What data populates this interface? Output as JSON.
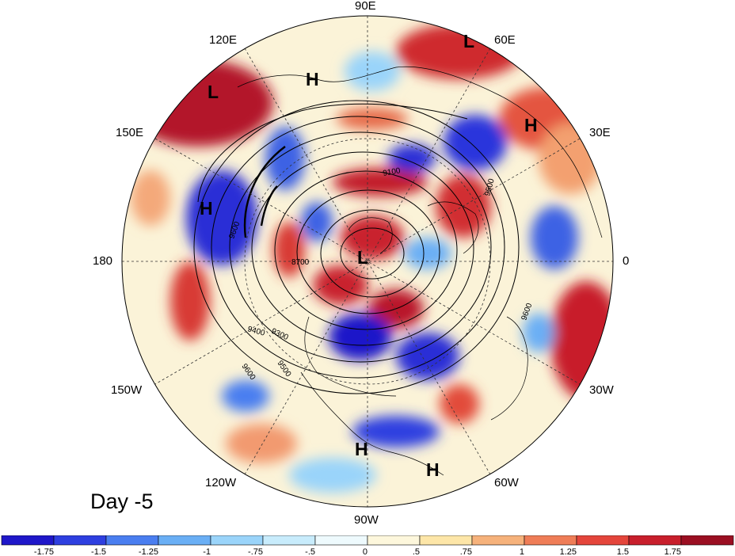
{
  "panel_label": "Day -5",
  "longitude_labels": {
    "lon_90e": "90E",
    "lon_120e": "120E",
    "lon_60e": "60E",
    "lon_150e": "150E",
    "lon_30e": "30E",
    "lon_180": "180",
    "lon_0": "0",
    "lon_150w": "150W",
    "lon_30w": "30W",
    "lon_120w": "120W",
    "lon_60w": "60W",
    "lon_90w": "90W"
  },
  "pressure_centers": [
    {
      "label": "L",
      "name": "low-center-east-siberia"
    },
    {
      "label": "H",
      "name": "high-center-kamchatka"
    },
    {
      "label": "L",
      "name": "low-center-west-siberia"
    },
    {
      "label": "H",
      "name": "high-center-ural"
    },
    {
      "label": "H",
      "name": "high-center-pacific"
    },
    {
      "label": "L",
      "name": "low-center-pole"
    },
    {
      "label": "H",
      "name": "high-center-mexico"
    },
    {
      "label": "H",
      "name": "high-center-caribbean"
    }
  ],
  "contour_labels": {
    "c1": "9600",
    "c2": "9100",
    "c3": "9500",
    "c4": "8700",
    "c5": "9400",
    "c6": "9300",
    "c7": "9600",
    "c8": "9500",
    "c9": "9600"
  },
  "colorbar": {
    "ticks": [
      "-1.75",
      "-1.5",
      "-1.25",
      "-1",
      "-.75",
      "-.5",
      "0",
      ".5",
      ".75",
      "1",
      "1.25",
      "1.5",
      "1.75"
    ],
    "colors": [
      "#1f17c9",
      "#2e3fe0",
      "#4a7ef0",
      "#6aaff5",
      "#9ad4fa",
      "#c8ecfc",
      "#eefafd",
      "#fdf7dc",
      "#fde6a8",
      "#f6b27b",
      "#ef7d57",
      "#e4453b",
      "#c81f2c",
      "#9b0f22"
    ]
  }
}
